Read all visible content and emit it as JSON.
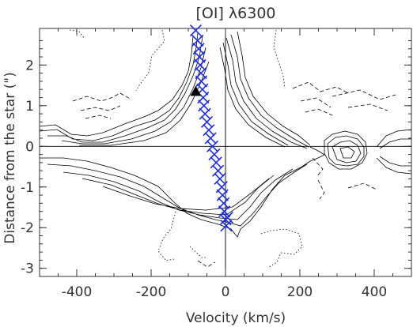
{
  "chart_data": {
    "type": "contour",
    "title": "[OI] λ6300",
    "xlabel": "Velocity (km/s)",
    "ylabel": "Distance from the star (\")",
    "xlim": [
      -500,
      500
    ],
    "ylim": [
      -3.2,
      2.9
    ],
    "xticks": [
      -400,
      -200,
      0,
      200,
      400
    ],
    "yticks": [
      -3,
      -2,
      -1,
      0,
      1,
      2
    ],
    "grid": false,
    "reference_lines": [
      {
        "axis": "x",
        "value": 0
      },
      {
        "axis": "y",
        "value": 0
      }
    ],
    "series": [
      {
        "marker": "x",
        "color": "#1f2fd6",
        "x": [
          -80,
          -75,
          -72,
          -70,
          -68,
          -66,
          -65,
          -62,
          -60,
          -58,
          -55,
          -50,
          -45,
          -40,
          -35,
          -30,
          -25,
          -20,
          -15,
          -10,
          -8,
          -5,
          -3,
          0,
          2,
          5
        ],
        "y": [
          2.85,
          2.6,
          2.4,
          2.2,
          2.0,
          1.8,
          1.6,
          1.4,
          1.2,
          1.0,
          0.8,
          0.6,
          0.4,
          0.2,
          0.0,
          -0.2,
          -0.4,
          -0.6,
          -0.8,
          -1.0,
          -1.2,
          -1.4,
          -1.6,
          -1.8,
          -1.95,
          -1.75
        ]
      },
      {
        "marker": "triangle",
        "color": "#000000",
        "x": [
          -80
        ],
        "y": [
          1.35
        ]
      }
    ],
    "colors": {
      "axes": "#333333",
      "contour": "#000000",
      "markers": "#1f2fd6"
    }
  }
}
